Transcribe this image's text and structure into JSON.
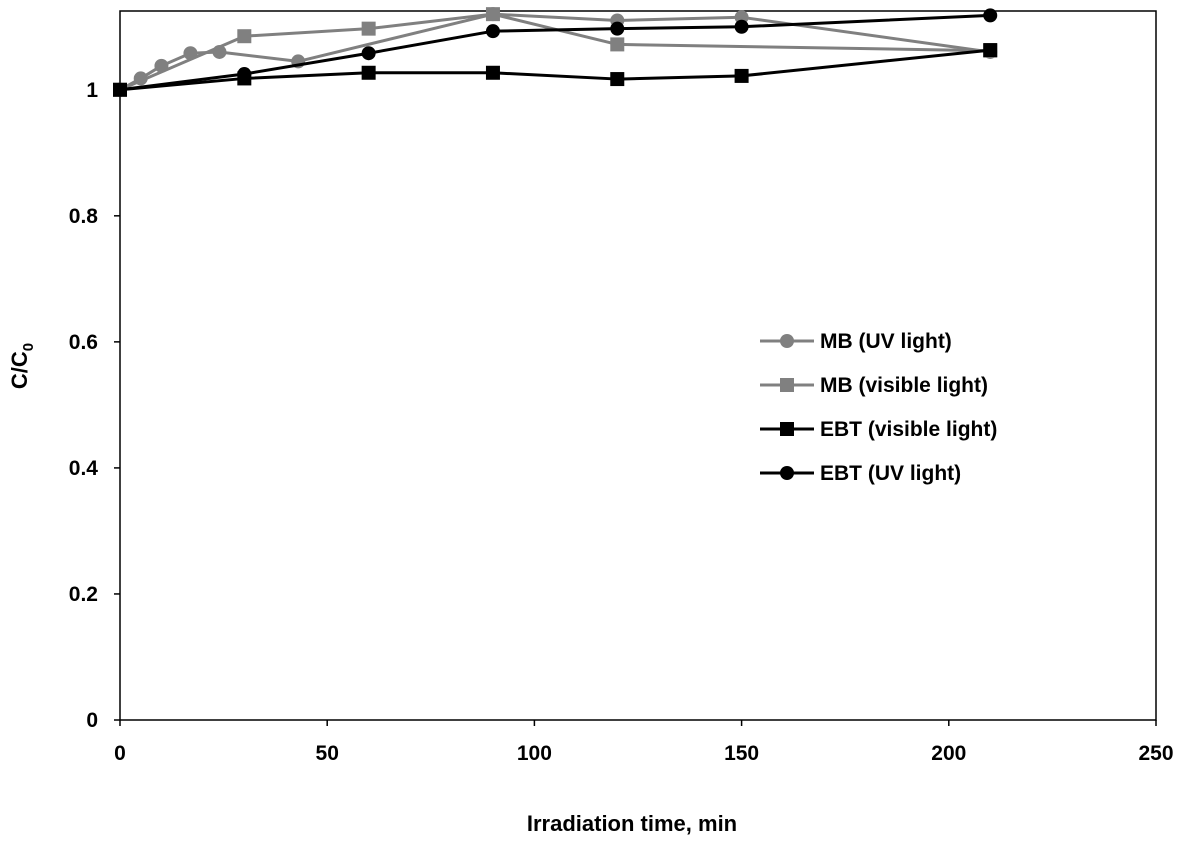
{
  "chart_data": {
    "type": "line",
    "xlabel": "Irradiation time, min",
    "ylabel": {
      "main": "C/C",
      "subscript": "0"
    },
    "xlim": [
      0,
      250
    ],
    "ylim": [
      0,
      1.125
    ],
    "xticks": [
      "0",
      "50",
      "100",
      "150",
      "200",
      "250"
    ],
    "yticks": [
      "0",
      "0.2",
      "0.4",
      "0.6",
      "0.8",
      "1"
    ],
    "grid": false,
    "legend_position": "right-center",
    "series": [
      {
        "name": "MB (UV light)",
        "color": "#808080",
        "marker": "circle",
        "x": [
          0,
          5,
          10,
          17,
          24,
          43,
          90,
          120,
          150,
          210
        ],
        "y": [
          1.0,
          1.018,
          1.038,
          1.058,
          1.06,
          1.045,
          1.12,
          1.11,
          1.115,
          1.06
        ]
      },
      {
        "name": "MB (visible light)",
        "color": "#808080",
        "marker": "square",
        "x": [
          0,
          30,
          60,
          90,
          120,
          210
        ],
        "y": [
          1.0,
          1.085,
          1.097,
          1.12,
          1.072,
          1.062
        ]
      },
      {
        "name": "EBT (visible light)",
        "color": "#000000",
        "marker": "square",
        "x": [
          0,
          30,
          60,
          90,
          120,
          150,
          210
        ],
        "y": [
          1.0,
          1.018,
          1.027,
          1.027,
          1.017,
          1.022,
          1.063
        ]
      },
      {
        "name": "EBT (UV light)",
        "color": "#000000",
        "marker": "circle",
        "x": [
          0,
          30,
          60,
          90,
          120,
          150,
          210
        ],
        "y": [
          1.0,
          1.025,
          1.058,
          1.093,
          1.097,
          1.1,
          1.118
        ]
      }
    ]
  }
}
